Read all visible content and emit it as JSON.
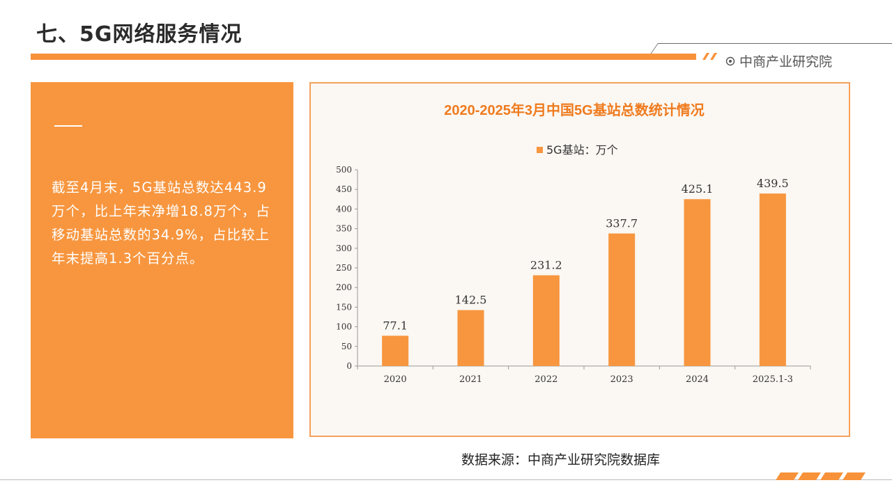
{
  "page": {
    "title": "七、5G网络服务情况",
    "brand": "中商产业研究院",
    "source": "数据来源：中商产业研究院数据库"
  },
  "panel": {
    "text": "截至4月末，5G基站总数达443.9万个，比上年末净增18.8万个，占移动基站总数的34.9%，占比较上年末提高1.3个百分点。"
  },
  "icons": {
    "brand_logo": "target-circle-icon"
  },
  "colors": {
    "accent": "#f7963f",
    "bar": "#f7963f",
    "title": "#ef7b1f"
  },
  "chart_data": {
    "type": "bar",
    "title": "2020-2025年3月中国5G基站总数统计情况",
    "categories": [
      "2020",
      "2021",
      "2022",
      "2023",
      "2024",
      "2025.1-3"
    ],
    "series": [
      {
        "name": "5G基站：万个",
        "values": [
          77.1,
          142.5,
          231.2,
          337.7,
          425.1,
          439.5
        ]
      }
    ],
    "ylim": [
      0,
      500
    ],
    "yticks": [
      0,
      50,
      100,
      150,
      200,
      250,
      300,
      350,
      400,
      450,
      500
    ],
    "grid": false,
    "legend": "top"
  }
}
